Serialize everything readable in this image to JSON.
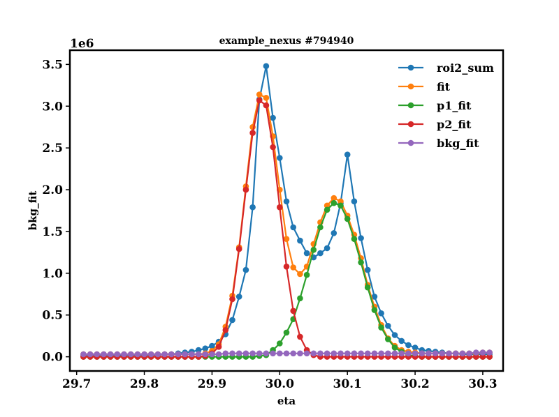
{
  "chart_data": {
    "type": "line",
    "title": "example_nexus #794940",
    "xlabel": "eta",
    "ylabel": "bkg_fit",
    "offset_label": "1e6",
    "xlim": [
      29.69,
      30.33
    ],
    "ylim": [
      -0.17,
      3.67
    ],
    "xticks": [
      29.7,
      29.8,
      29.9,
      30.0,
      30.1,
      30.2,
      30.3
    ],
    "xtick_labels": [
      "29.7",
      "29.8",
      "29.9",
      "30.0",
      "30.1",
      "30.2",
      "30.3"
    ],
    "yticks": [
      0.0,
      0.5,
      1.0,
      1.5,
      2.0,
      2.5,
      3.0,
      3.5
    ],
    "ytick_labels": [
      "0.0",
      "0.5",
      "1.0",
      "1.5",
      "2.0",
      "2.5",
      "3.0",
      "3.5"
    ],
    "grid": false,
    "legend_position": "top-right",
    "x": [
      29.71,
      29.72,
      29.73,
      29.74,
      29.75,
      29.76,
      29.77,
      29.78,
      29.79,
      29.8,
      29.81,
      29.82,
      29.83,
      29.84,
      29.85,
      29.86,
      29.87,
      29.88,
      29.89,
      29.9,
      29.91,
      29.92,
      29.93,
      29.94,
      29.95,
      29.96,
      29.97,
      29.98,
      29.99,
      30.0,
      30.01,
      30.02,
      30.03,
      30.04,
      30.05,
      30.06,
      30.07,
      30.08,
      30.09,
      30.1,
      30.11,
      30.12,
      30.13,
      30.14,
      30.15,
      30.16,
      30.17,
      30.18,
      30.19,
      30.2,
      30.21,
      30.22,
      30.23,
      30.24,
      30.25,
      30.26,
      30.27,
      30.28,
      30.29,
      30.3,
      30.31
    ],
    "series": [
      {
        "name": "roi2_sum",
        "color": "#1f77b4",
        "values": [
          0.01,
          0.01,
          0.01,
          0.01,
          0.01,
          0.01,
          0.02,
          0.02,
          0.02,
          0.02,
          0.02,
          0.02,
          0.03,
          0.03,
          0.04,
          0.05,
          0.06,
          0.08,
          0.1,
          0.13,
          0.18,
          0.27,
          0.44,
          0.72,
          1.04,
          1.79,
          3.08,
          3.48,
          2.86,
          2.38,
          1.86,
          1.55,
          1.39,
          1.24,
          1.19,
          1.24,
          1.3,
          1.48,
          1.84,
          2.42,
          1.86,
          1.42,
          1.04,
          0.72,
          0.52,
          0.37,
          0.26,
          0.19,
          0.14,
          0.11,
          0.08,
          0.07,
          0.06,
          0.05,
          0.04,
          0.04,
          0.03,
          0.03,
          0.03,
          0.03,
          0.03
        ]
      },
      {
        "name": "fit",
        "color": "#ff7f0e",
        "values": [
          0.03,
          0.03,
          0.03,
          0.03,
          0.03,
          0.03,
          0.03,
          0.03,
          0.03,
          0.03,
          0.03,
          0.03,
          0.03,
          0.03,
          0.03,
          0.03,
          0.03,
          0.03,
          0.04,
          0.07,
          0.15,
          0.36,
          0.73,
          1.31,
          2.04,
          2.75,
          3.14,
          3.1,
          2.64,
          2.0,
          1.41,
          1.07,
          0.99,
          1.08,
          1.35,
          1.61,
          1.81,
          1.9,
          1.86,
          1.69,
          1.46,
          1.18,
          0.86,
          0.6,
          0.38,
          0.22,
          0.13,
          0.08,
          0.06,
          0.05,
          0.04,
          0.04,
          0.04,
          0.04,
          0.04,
          0.04,
          0.04,
          0.04,
          0.04,
          0.05,
          0.05
        ]
      },
      {
        "name": "p1_fit",
        "color": "#2ca02c",
        "values": [
          0.0,
          0.0,
          0.0,
          0.0,
          0.0,
          0.0,
          0.0,
          0.0,
          0.0,
          0.0,
          0.0,
          0.0,
          0.0,
          0.0,
          0.0,
          0.0,
          0.0,
          0.0,
          0.0,
          0.0,
          0.0,
          0.0,
          0.0,
          0.0,
          0.0,
          0.0,
          0.01,
          0.02,
          0.08,
          0.16,
          0.29,
          0.45,
          0.7,
          0.98,
          1.28,
          1.55,
          1.76,
          1.84,
          1.81,
          1.65,
          1.41,
          1.13,
          0.83,
          0.56,
          0.35,
          0.21,
          0.11,
          0.06,
          0.02,
          0.01,
          0.0,
          0.0,
          0.0,
          0.0,
          0.0,
          0.0,
          0.0,
          0.0,
          0.0,
          0.0,
          0.0
        ]
      },
      {
        "name": "p2_fit",
        "color": "#d62728",
        "values": [
          0.0,
          0.0,
          0.0,
          0.0,
          0.0,
          0.0,
          0.0,
          0.0,
          0.0,
          0.0,
          0.0,
          0.0,
          0.0,
          0.0,
          0.0,
          0.0,
          0.0,
          0.0,
          0.01,
          0.04,
          0.12,
          0.32,
          0.69,
          1.29,
          2.0,
          2.68,
          3.07,
          3.01,
          2.51,
          1.79,
          1.08,
          0.55,
          0.24,
          0.08,
          0.02,
          0.0,
          0.0,
          0.0,
          0.0,
          0.0,
          0.0,
          0.0,
          0.0,
          0.0,
          0.0,
          0.0,
          0.0,
          0.0,
          0.0,
          0.0,
          0.0,
          0.0,
          0.0,
          0.0,
          0.0,
          0.0,
          0.0,
          0.0,
          0.0,
          0.0,
          0.0
        ]
      },
      {
        "name": "bkg_fit",
        "color": "#9467bd",
        "values": [
          0.03,
          0.03,
          0.03,
          0.03,
          0.03,
          0.03,
          0.03,
          0.03,
          0.03,
          0.03,
          0.03,
          0.03,
          0.03,
          0.03,
          0.03,
          0.03,
          0.03,
          0.03,
          0.03,
          0.03,
          0.03,
          0.04,
          0.04,
          0.04,
          0.04,
          0.04,
          0.04,
          0.04,
          0.04,
          0.04,
          0.04,
          0.04,
          0.04,
          0.04,
          0.04,
          0.04,
          0.04,
          0.04,
          0.04,
          0.04,
          0.04,
          0.04,
          0.04,
          0.04,
          0.04,
          0.04,
          0.04,
          0.04,
          0.04,
          0.04,
          0.04,
          0.04,
          0.04,
          0.04,
          0.04,
          0.04,
          0.04,
          0.04,
          0.05,
          0.05,
          0.05
        ]
      }
    ]
  }
}
